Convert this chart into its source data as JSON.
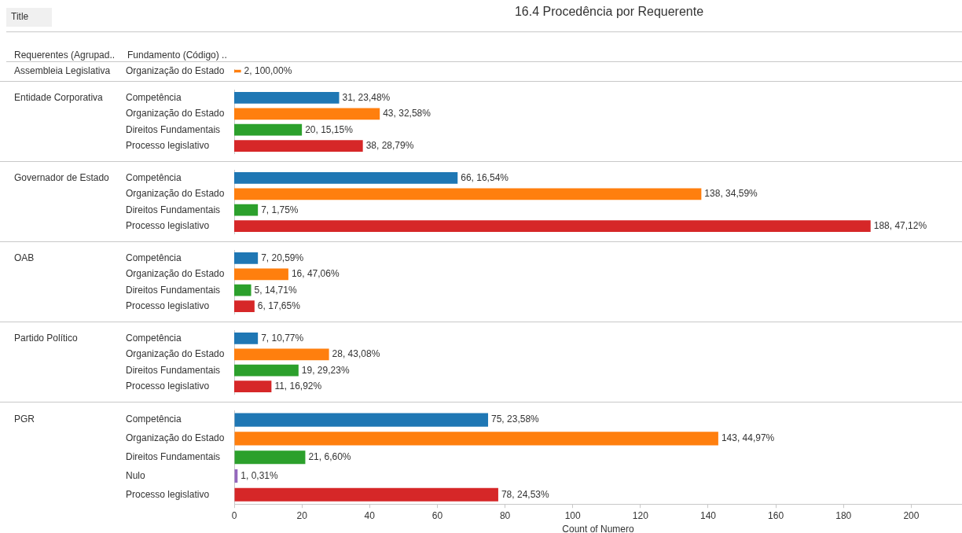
{
  "chart_data": [
    {
      "type": "bar",
      "orientation": "horizontal",
      "title": "16.4 Procedência por Requerente",
      "annotations": [
        "Title",
        "Requerentes (Agrupad..",
        "Fundamento (Código) .."
      ],
      "ylabel": "Assembleia Legislativa",
      "categories": [
        "Organização do Estado"
      ],
      "values": [
        2
      ],
      "colors": [
        "#ff7f0e"
      ],
      "value_labels": [
        "2, 100,00%"
      ],
      "xlim": [
        0,
        215
      ],
      "tick_labels": "y",
      "grid": false,
      "legend": false
    },
    {
      "type": "bar",
      "orientation": "horizontal",
      "ylabel": "Entidade Corporativa",
      "categories": [
        "Competência",
        "Organização do Estado",
        "Direitos Fundamentais",
        "Processo legislativo"
      ],
      "values": [
        31,
        43,
        20,
        38
      ],
      "colors": [
        "#1f77b4",
        "#ff7f0e",
        "#2ca02c",
        "#d62728"
      ],
      "value_labels": [
        "31, 23,48%",
        "43, 32,58%",
        "20, 15,15%",
        "38, 28,79%"
      ],
      "xlim": [
        0,
        215
      ],
      "tick_labels": "y",
      "grid": false,
      "legend": false
    },
    {
      "type": "bar",
      "orientation": "horizontal",
      "ylabel": "Governador de Estado",
      "categories": [
        "Competência",
        "Organização do Estado",
        "Direitos Fundamentais",
        "Processo legislativo"
      ],
      "values": [
        66,
        138,
        7,
        188
      ],
      "colors": [
        "#1f77b4",
        "#ff7f0e",
        "#2ca02c",
        "#d62728"
      ],
      "value_labels": [
        "66, 16,54%",
        "138, 34,59%",
        "7, 1,75%",
        "188, 47,12%"
      ],
      "xlim": [
        0,
        215
      ],
      "tick_labels": "y",
      "grid": false,
      "legend": false
    },
    {
      "type": "bar",
      "orientation": "horizontal",
      "ylabel": "OAB",
      "categories": [
        "Competência",
        "Organização do Estado",
        "Direitos Fundamentais",
        "Processo legislativo"
      ],
      "values": [
        7,
        16,
        5,
        6
      ],
      "colors": [
        "#1f77b4",
        "#ff7f0e",
        "#2ca02c",
        "#d62728"
      ],
      "value_labels": [
        "7, 20,59%",
        "16, 47,06%",
        "5, 14,71%",
        "6, 17,65%"
      ],
      "xlim": [
        0,
        215
      ],
      "tick_labels": "y",
      "grid": false,
      "legend": false
    },
    {
      "type": "bar",
      "orientation": "horizontal",
      "ylabel": "Partido Político",
      "categories": [
        "Competência",
        "Organização do Estado",
        "Direitos Fundamentais",
        "Processo legislativo"
      ],
      "values": [
        7,
        28,
        19,
        11
      ],
      "colors": [
        "#1f77b4",
        "#ff7f0e",
        "#2ca02c",
        "#d62728"
      ],
      "value_labels": [
        "7, 10,77%",
        "28, 43,08%",
        "19, 29,23%",
        "11, 16,92%"
      ],
      "xlim": [
        0,
        215
      ],
      "tick_labels": "y",
      "grid": false,
      "legend": false
    },
    {
      "type": "bar",
      "orientation": "horizontal",
      "ylabel": "PGR",
      "xlabel": "Count of Numero",
      "categories": [
        "Competência",
        "Organização do Estado",
        "Direitos Fundamentais",
        "Nulo",
        "Processo legislativo"
      ],
      "values": [
        75,
        143,
        21,
        1,
        78
      ],
      "colors": [
        "#1f77b4",
        "#ff7f0e",
        "#2ca02c",
        "#9467bd",
        "#d62728"
      ],
      "value_labels": [
        "75, 23,58%",
        "143, 44,97%",
        "21, 6,60%",
        "1, 0,31%",
        "78, 24,53%"
      ],
      "xlim": [
        0,
        215
      ],
      "xticks": [
        0,
        20,
        40,
        60,
        80,
        100,
        120,
        140,
        160,
        180,
        200
      ],
      "grid": false,
      "legend": false
    }
  ]
}
